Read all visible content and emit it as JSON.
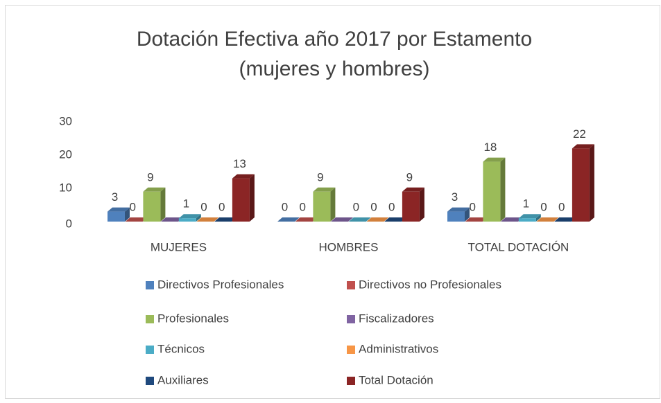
{
  "chart_data": {
    "type": "bar3d",
    "title": [
      "Dotación Efectiva año 2017 por Estamento",
      "(mujeres y hombres)"
    ],
    "categories": [
      "MUJERES",
      "HOMBRES",
      "TOTAL DOTACIÓN"
    ],
    "ylim": [
      0,
      30
    ],
    "yticks": [
      0,
      10,
      20,
      30
    ],
    "grid": false,
    "legend": "bottom",
    "series": [
      {
        "name": "Directivos Profesionales",
        "color": "#4f81bd",
        "values": [
          3,
          0,
          3
        ]
      },
      {
        "name": "Directivos no Profesionales",
        "color": "#c0504d",
        "values": [
          0,
          0,
          0
        ]
      },
      {
        "name": "Profesionales",
        "color": "#9bbb59",
        "values": [
          9,
          9,
          18
        ]
      },
      {
        "name": "Fiscalizadores",
        "color": "#8064a2",
        "values": [
          0,
          0,
          0
        ],
        "data_labels": false
      },
      {
        "name": "Técnicos",
        "color": "#4bacc6",
        "values": [
          1,
          0,
          1
        ]
      },
      {
        "name": "Administrativos",
        "color": "#f79646",
        "values": [
          0,
          0,
          0
        ]
      },
      {
        "name": "Auxiliares",
        "color": "#1f497d",
        "values": [
          0,
          0,
          0
        ]
      },
      {
        "name": "Total Dotación",
        "color": "#8b2525",
        "values": [
          13,
          9,
          22
        ]
      }
    ]
  }
}
